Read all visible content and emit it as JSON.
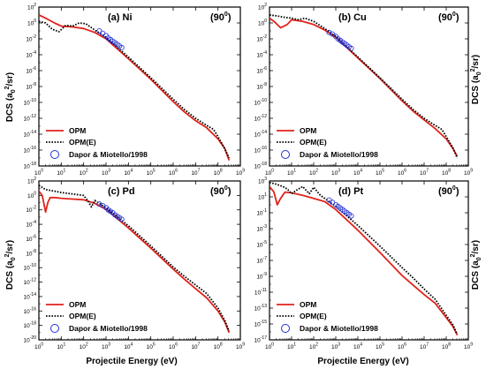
{
  "figure": {
    "xlabel": "Projectile Energy (eV)",
    "ylabel": "DCS (a",
    "ylabel_sub": "0",
    "ylabel_sup": "2",
    "ylabel_end": "/sr)",
    "angle_text": "(90",
    "angle_sup": "0",
    "angle_end": ")"
  },
  "legend": {
    "opm": "OPM",
    "opme": "OPM(E)",
    "dapor": "Dapor & Miotello/1998"
  },
  "colors": {
    "opm": "#e0231b",
    "opme": "#000000",
    "dapor": "#1f2fd6"
  },
  "chart_data": [
    {
      "type": "line",
      "label": "(a) Ni",
      "xscale": "log",
      "yscale": "log",
      "xlim": [
        1,
        1000000000.0
      ],
      "ylim_exp": [
        -18,
        2
      ],
      "ytick_exps": [
        2,
        0,
        -2,
        -4,
        -6,
        -8,
        -10,
        -12,
        -14,
        -16,
        -18
      ],
      "xtick_exps": [
        0,
        1,
        2,
        3,
        4,
        5,
        6,
        7,
        8,
        9
      ],
      "series": [
        {
          "name": "OPM",
          "style": "solid",
          "x_exp": [
            0,
            0.3,
            0.7,
            1.0,
            1.5,
            2.0,
            2.5,
            3.0,
            4.0,
            5.0,
            6.0,
            6.5,
            7.0,
            7.5,
            8.0,
            8.3,
            8.5
          ],
          "y_exp": [
            1.0,
            0.6,
            0.0,
            -0.4,
            -0.5,
            -0.7,
            -1.2,
            -2.0,
            -4.5,
            -7.1,
            -9.9,
            -11.2,
            -12.3,
            -13.2,
            -14.6,
            -15.8,
            -17.3
          ]
        },
        {
          "name": "OPM(E)",
          "style": "dotted",
          "x_exp": [
            0,
            0.3,
            0.6,
            0.9,
            1.2,
            1.5,
            1.8,
            2.1,
            2.5,
            3.0,
            4.0,
            5.0,
            6.0,
            6.5,
            7.0,
            7.5,
            7.8,
            8.0,
            8.3,
            8.5
          ],
          "y_exp": [
            0.2,
            0.0,
            -0.8,
            -1.1,
            -0.3,
            -0.4,
            0.0,
            -0.1,
            -0.9,
            -1.8,
            -4.3,
            -6.9,
            -9.6,
            -10.9,
            -12.0,
            -12.9,
            -13.4,
            -14.3,
            -15.8,
            -17.0
          ]
        },
        {
          "name": "Dapor & Miotello/1998",
          "style": "circles",
          "x_exp": [
            2.7,
            2.85,
            3.0,
            3.1,
            3.2,
            3.3,
            3.4,
            3.5,
            3.6,
            3.7
          ],
          "y_exp": [
            -1.0,
            -1.3,
            -1.6,
            -1.9,
            -2.1,
            -2.3,
            -2.5,
            -2.7,
            -2.9,
            -3.1
          ]
        }
      ]
    },
    {
      "type": "line",
      "label": "(b) Cu",
      "xscale": "log",
      "yscale": "log",
      "xlim": [
        1,
        1000000000.0
      ],
      "ylim_exp": [
        -18,
        2
      ],
      "ytick_exps": [
        2,
        0,
        -2,
        -4,
        -6,
        -8,
        -10,
        -12,
        -14,
        -16,
        -18
      ],
      "xtick_exps": [
        0,
        1,
        2,
        3,
        4,
        5,
        6,
        7,
        8,
        9
      ],
      "series": [
        {
          "name": "OPM",
          "style": "solid",
          "x_exp": [
            0,
            0.2,
            0.5,
            0.8,
            1.0,
            1.5,
            2.0,
            2.5,
            3.0,
            4.0,
            5.0,
            6.0,
            6.5,
            7.0,
            7.5,
            8.0,
            8.3,
            8.5
          ],
          "y_exp": [
            0.6,
            0.2,
            -0.6,
            -0.2,
            0.4,
            0.2,
            -0.2,
            -0.9,
            -1.8,
            -4.4,
            -7.0,
            -9.8,
            -11.1,
            -12.2,
            -13.3,
            -14.6,
            -15.8,
            -16.8
          ]
        },
        {
          "name": "OPM(E)",
          "style": "dotted",
          "x_exp": [
            0,
            0.3,
            0.7,
            1.0,
            1.3,
            1.6,
            2.0,
            2.5,
            3.0,
            4.0,
            5.0,
            6.0,
            6.5,
            7.0,
            7.5,
            7.8,
            8.0,
            8.3,
            8.5
          ],
          "y_exp": [
            1.0,
            0.9,
            0.7,
            0.6,
            0.4,
            0.6,
            0.2,
            -0.7,
            -1.7,
            -4.3,
            -6.9,
            -9.6,
            -10.9,
            -12.0,
            -12.9,
            -13.4,
            -14.3,
            -15.7,
            -17.0
          ]
        },
        {
          "name": "Dapor & Miotello/1998",
          "style": "circles",
          "x_exp": [
            2.7,
            2.85,
            3.0,
            3.1,
            3.2,
            3.3,
            3.4,
            3.5,
            3.6,
            3.7
          ],
          "y_exp": [
            -1.2,
            -1.4,
            -1.7,
            -2.0,
            -2.2,
            -2.4,
            -2.6,
            -2.8,
            -3.0,
            -3.2
          ]
        }
      ]
    },
    {
      "type": "line",
      "label": "(c) Pd",
      "xscale": "log",
      "yscale": "log",
      "xlim": [
        1,
        1000000000.0
      ],
      "ylim_exp": [
        -20,
        2
      ],
      "ytick_exps": [
        2,
        0,
        -2,
        -4,
        -6,
        -8,
        -10,
        -12,
        -14,
        -16,
        -18,
        -20
      ],
      "xtick_exps": [
        0,
        1,
        2,
        3,
        4,
        5,
        6,
        7,
        8,
        9
      ],
      "series": [
        {
          "name": "OPM",
          "style": "solid",
          "x_exp": [
            0,
            0.15,
            0.3,
            0.4,
            0.5,
            0.7,
            1.0,
            1.5,
            2.0,
            2.5,
            3.0,
            4.0,
            5.0,
            6.0,
            6.5,
            7.0,
            7.5,
            8.0,
            8.3,
            8.5
          ],
          "y_exp": [
            0.6,
            0.0,
            -2.3,
            -1.0,
            -0.3,
            -0.3,
            -0.4,
            -0.5,
            -0.6,
            -1.1,
            -1.9,
            -4.5,
            -7.3,
            -10.2,
            -11.6,
            -12.9,
            -14.2,
            -16.0,
            -17.5,
            -19.0
          ]
        },
        {
          "name": "OPM(E)",
          "style": "dotted",
          "x_exp": [
            0,
            0.3,
            0.7,
            1.0,
            1.5,
            2.0,
            2.2,
            2.35,
            2.5,
            3.0,
            4.0,
            5.0,
            6.0,
            6.5,
            7.0,
            7.5,
            8.0,
            8.3,
            8.5
          ],
          "y_exp": [
            1.4,
            0.8,
            0.6,
            0.4,
            0.2,
            0.0,
            -0.8,
            -1.6,
            -0.7,
            -1.7,
            -4.2,
            -7.0,
            -9.9,
            -11.2,
            -12.4,
            -13.6,
            -15.6,
            -17.3,
            -18.8
          ]
        },
        {
          "name": "Dapor & Miotello/1998",
          "style": "circles",
          "x_exp": [
            2.7,
            2.85,
            3.0,
            3.1,
            3.2,
            3.3,
            3.4,
            3.5,
            3.6,
            3.7
          ],
          "y_exp": [
            -1.2,
            -1.4,
            -1.7,
            -2.0,
            -2.2,
            -2.4,
            -2.7,
            -2.9,
            -3.1,
            -3.3
          ]
        }
      ]
    },
    {
      "type": "line",
      "label": "(d) Pt",
      "xscale": "log",
      "yscale": "log",
      "xlim": [
        1,
        1000000000.0
      ],
      "ylim_exp": [
        -17,
        3
      ],
      "ytick_exps": [
        3,
        1,
        -1,
        -3,
        -5,
        -7,
        -9,
        -11,
        -13,
        -15,
        -17
      ],
      "xtick_exps": [
        0,
        1,
        2,
        3,
        4,
        5,
        6,
        7,
        8,
        9
      ],
      "series": [
        {
          "name": "OPM",
          "style": "solid",
          "x_exp": [
            0,
            0.2,
            0.35,
            0.5,
            0.7,
            1.0,
            1.5,
            2.0,
            2.5,
            3.0,
            4.0,
            5.0,
            6.0,
            6.5,
            7.0,
            7.5,
            8.0,
            8.3,
            8.5
          ],
          "y_exp": [
            2.3,
            1.6,
            0.0,
            0.8,
            1.6,
            1.5,
            1.2,
            0.8,
            0.4,
            -0.6,
            -3.2,
            -6.0,
            -8.9,
            -10.1,
            -11.3,
            -12.4,
            -14.2,
            -15.3,
            -16.4
          ]
        },
        {
          "name": "OPM(E)",
          "style": "dotted",
          "x_exp": [
            0,
            0.3,
            0.6,
            0.8,
            1.0,
            1.2,
            1.5,
            1.8,
            2.0,
            2.3,
            2.6,
            3.0,
            4.0,
            5.0,
            6.0,
            6.5,
            7.0,
            7.5,
            8.0,
            8.3,
            8.5
          ],
          "y_exp": [
            2.8,
            2.6,
            2.3,
            2.0,
            1.4,
            1.8,
            2.3,
            1.4,
            2.2,
            1.2,
            0.6,
            -0.2,
            -2.6,
            -5.2,
            -7.9,
            -9.2,
            -10.6,
            -11.9,
            -13.9,
            -15.1,
            -16.3
          ]
        },
        {
          "name": "Dapor & Miotello/1998",
          "style": "circles",
          "x_exp": [
            2.7,
            2.85,
            3.0,
            3.1,
            3.2,
            3.3,
            3.4,
            3.5,
            3.6,
            3.7
          ],
          "y_exp": [
            0.6,
            0.3,
            0.0,
            -0.2,
            -0.4,
            -0.6,
            -0.8,
            -1.0,
            -1.2,
            -1.4
          ]
        }
      ]
    }
  ]
}
